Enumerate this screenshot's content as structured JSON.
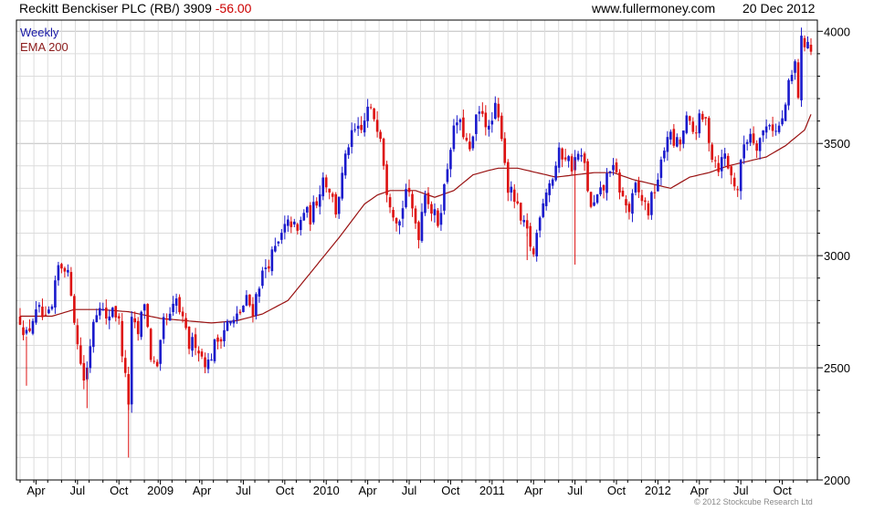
{
  "header": {
    "instrument": "Reckitt Benckiser PLC (RB/)",
    "last": "3909",
    "change": "-56.00",
    "site": "www.fullermoney.com",
    "date": "20 Dec 2012"
  },
  "credit": "© 2012 Stockcube Research Ltd",
  "legend": {
    "weekly": "Weekly",
    "ema": "EMA 200"
  },
  "colors": {
    "up": "#1a1acc",
    "down": "#dd1111",
    "ema": "#991111",
    "grid": "#dcdcdc",
    "axis": "#000000"
  },
  "chart_data": {
    "type": "candlestick",
    "ylim": [
      2000,
      4050
    ],
    "y_ticks": [
      2000,
      2500,
      3000,
      3500,
      4000
    ],
    "grid": true,
    "legend_position": "top-left",
    "x_ticks": [
      {
        "label": "Apr",
        "week": 5
      },
      {
        "label": "Jul",
        "week": 18
      },
      {
        "label": "Oct",
        "week": 31
      },
      {
        "label": "2009",
        "week": 44
      },
      {
        "label": "Apr",
        "week": 57
      },
      {
        "label": "Jul",
        "week": 70
      },
      {
        "label": "Oct",
        "week": 83
      },
      {
        "label": "2010",
        "week": 96
      },
      {
        "label": "Apr",
        "week": 109
      },
      {
        "label": "Jul",
        "week": 122
      },
      {
        "label": "Oct",
        "week": 135
      },
      {
        "label": "2011",
        "week": 148
      },
      {
        "label": "Apr",
        "week": 161
      },
      {
        "label": "Jul",
        "week": 174
      },
      {
        "label": "Oct",
        "week": 187
      },
      {
        "label": "2012",
        "week": 200
      },
      {
        "label": "Apr",
        "week": 213
      },
      {
        "label": "Jul",
        "week": 226
      },
      {
        "label": "Oct",
        "week": 239
      }
    ],
    "close_path": [
      [
        0,
        2720
      ],
      [
        2,
        2640
      ],
      [
        4,
        2720
      ],
      [
        6,
        2750
      ],
      [
        8,
        2700
      ],
      [
        10,
        2760
      ],
      [
        12,
        2950
      ],
      [
        14,
        2960
      ],
      [
        16,
        2850
      ],
      [
        18,
        2600
      ],
      [
        20,
        2450
      ],
      [
        21,
        2500
      ],
      [
        23,
        2720
      ],
      [
        25,
        2800
      ],
      [
        27,
        2700
      ],
      [
        29,
        2780
      ],
      [
        31,
        2700
      ],
      [
        33,
        2450
      ],
      [
        34,
        2350
      ],
      [
        35,
        2700
      ],
      [
        37,
        2650
      ],
      [
        39,
        2800
      ],
      [
        41,
        2550
      ],
      [
        43,
        2480
      ],
      [
        45,
        2700
      ],
      [
        47,
        2720
      ],
      [
        49,
        2800
      ],
      [
        51,
        2700
      ],
      [
        53,
        2600
      ],
      [
        55,
        2620
      ],
      [
        57,
        2550
      ],
      [
        59,
        2520
      ],
      [
        61,
        2600
      ],
      [
        63,
        2650
      ],
      [
        65,
        2700
      ],
      [
        67,
        2700
      ],
      [
        69,
        2750
      ],
      [
        71,
        2800
      ],
      [
        73,
        2760
      ],
      [
        75,
        2880
      ],
      [
        77,
        2950
      ],
      [
        79,
        3000
      ],
      [
        81,
        3050
      ],
      [
        83,
        3120
      ],
      [
        85,
        3150
      ],
      [
        87,
        3100
      ],
      [
        89,
        3200
      ],
      [
        91,
        3170
      ],
      [
        93,
        3250
      ],
      [
        95,
        3350
      ],
      [
        97,
        3300
      ],
      [
        99,
        3200
      ],
      [
        101,
        3350
      ],
      [
        103,
        3500
      ],
      [
        105,
        3550
      ],
      [
        107,
        3550
      ],
      [
        109,
        3650
      ],
      [
        111,
        3620
      ],
      [
        113,
        3550
      ],
      [
        115,
        3300
      ],
      [
        117,
        3200
      ],
      [
        119,
        3150
      ],
      [
        121,
        3300
      ],
      [
        123,
        3200
      ],
      [
        125,
        3100
      ],
      [
        127,
        3300
      ],
      [
        129,
        3200
      ],
      [
        131,
        3150
      ],
      [
        133,
        3300
      ],
      [
        135,
        3500
      ],
      [
        137,
        3600
      ],
      [
        139,
        3550
      ],
      [
        141,
        3450
      ],
      [
        143,
        3600
      ],
      [
        145,
        3650
      ],
      [
        147,
        3550
      ],
      [
        149,
        3650
      ],
      [
        151,
        3550
      ],
      [
        153,
        3300
      ],
      [
        155,
        3250
      ],
      [
        157,
        3150
      ],
      [
        159,
        3100
      ],
      [
        161,
        3000
      ],
      [
        163,
        3200
      ],
      [
        165,
        3300
      ],
      [
        167,
        3350
      ],
      [
        169,
        3450
      ],
      [
        171,
        3450
      ],
      [
        173,
        3400
      ],
      [
        175,
        3450
      ],
      [
        177,
        3400
      ],
      [
        179,
        3200
      ],
      [
        181,
        3250
      ],
      [
        183,
        3300
      ],
      [
        185,
        3400
      ],
      [
        187,
        3350
      ],
      [
        189,
        3250
      ],
      [
        191,
        3200
      ],
      [
        193,
        3300
      ],
      [
        195,
        3250
      ],
      [
        197,
        3200
      ],
      [
        199,
        3300
      ],
      [
        201,
        3400
      ],
      [
        203,
        3550
      ],
      [
        205,
        3500
      ],
      [
        207,
        3500
      ],
      [
        209,
        3600
      ],
      [
        211,
        3550
      ],
      [
        213,
        3600
      ],
      [
        215,
        3600
      ],
      [
        217,
        3450
      ],
      [
        219,
        3400
      ],
      [
        221,
        3450
      ],
      [
        223,
        3350
      ],
      [
        225,
        3300
      ],
      [
        227,
        3500
      ],
      [
        229,
        3550
      ],
      [
        231,
        3500
      ],
      [
        233,
        3550
      ],
      [
        235,
        3600
      ],
      [
        237,
        3550
      ],
      [
        239,
        3600
      ],
      [
        241,
        3750
      ],
      [
        243,
        3850
      ],
      [
        244,
        3720
      ],
      [
        245,
        3950
      ],
      [
        247,
        3960
      ],
      [
        248,
        3909
      ]
    ],
    "ema_path": [
      [
        0,
        2730
      ],
      [
        10,
        2730
      ],
      [
        17,
        2760
      ],
      [
        25,
        2760
      ],
      [
        34,
        2750
      ],
      [
        44,
        2720
      ],
      [
        52,
        2710
      ],
      [
        60,
        2700
      ],
      [
        68,
        2710
      ],
      [
        76,
        2740
      ],
      [
        84,
        2800
      ],
      [
        92,
        2940
      ],
      [
        100,
        3080
      ],
      [
        108,
        3230
      ],
      [
        112,
        3270
      ],
      [
        116,
        3290
      ],
      [
        124,
        3290
      ],
      [
        130,
        3260
      ],
      [
        136,
        3290
      ],
      [
        142,
        3360
      ],
      [
        147,
        3380
      ],
      [
        150,
        3390
      ],
      [
        156,
        3390
      ],
      [
        162,
        3370
      ],
      [
        168,
        3350
      ],
      [
        174,
        3360
      ],
      [
        180,
        3370
      ],
      [
        186,
        3370
      ],
      [
        192,
        3340
      ],
      [
        198,
        3320
      ],
      [
        204,
        3300
      ],
      [
        210,
        3350
      ],
      [
        216,
        3370
      ],
      [
        222,
        3400
      ],
      [
        228,
        3420
      ],
      [
        234,
        3440
      ],
      [
        240,
        3490
      ],
      [
        246,
        3560
      ],
      [
        248,
        3630
      ]
    ]
  }
}
